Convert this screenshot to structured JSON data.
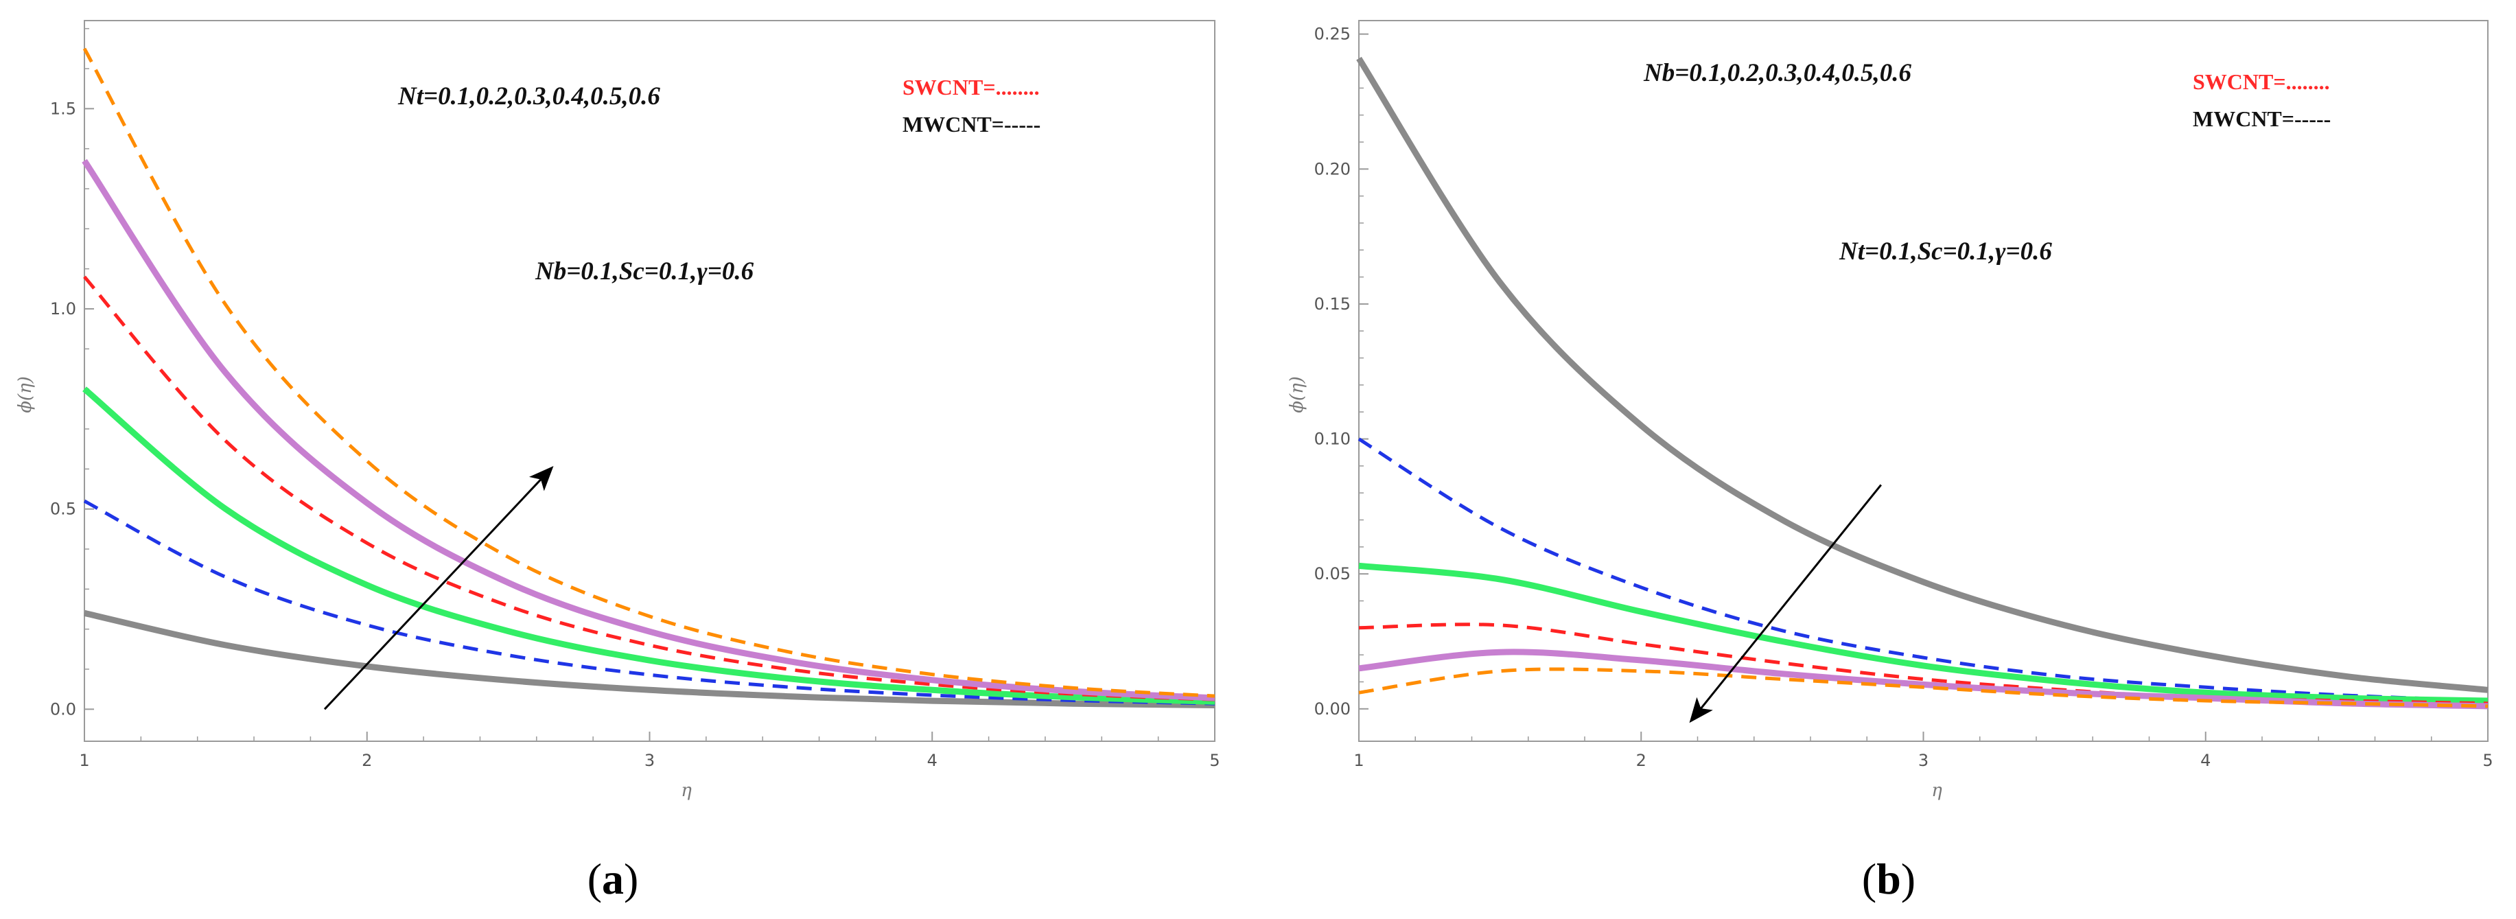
{
  "colors": {
    "gray": "#8a8a8a",
    "blue": "#1f35e6",
    "green": "#33ee66",
    "red": "#ff2222",
    "magenta": "#c77fd0",
    "orange": "#ff8c00",
    "frame": "#9a9a9a",
    "arrow": "#000000"
  },
  "chart_data": [
    {
      "panel_label": "a",
      "type": "line",
      "xlabel": "η",
      "ylabel": "ϕ(η)",
      "xlim": [
        1,
        5
      ],
      "ylim": [
        -0.08,
        1.72
      ],
      "xticks": [
        1,
        2,
        3,
        4,
        5
      ],
      "xtick_labels": [
        "1",
        "2",
        "3",
        "4",
        "5"
      ],
      "yticks": [
        0.0,
        0.5,
        1.0,
        1.5
      ],
      "ytick_labels": [
        "0.0",
        "0.5",
        "1.0",
        "1.5"
      ],
      "annotation_param": "Nt=0.1,0.2,0.3,0.4,0.5,0.6",
      "annotation_fixed": "Nb=0.1,Sc=0.1,γ=0.6",
      "legend": {
        "swcnt": "SWCNT=........",
        "mwcnt": "MWCNT=-----"
      },
      "arrow": {
        "from": [
          1.85,
          0.0
        ],
        "to": [
          2.65,
          0.6
        ],
        "direction": "increasing Nt"
      },
      "x": [
        1,
        1.5,
        2,
        2.5,
        3,
        3.5,
        4,
        4.5,
        5
      ],
      "series": [
        {
          "name": "Nt=0.1",
          "color_key": "gray",
          "style": "solid",
          "width": 9,
          "values": [
            0.24,
            0.16,
            0.107,
            0.072,
            0.048,
            0.032,
            0.021,
            0.014,
            0.01
          ]
        },
        {
          "name": "Nt=0.2",
          "color_key": "blue",
          "style": "dash",
          "width": 5,
          "values": [
            0.52,
            0.33,
            0.21,
            0.135,
            0.086,
            0.055,
            0.035,
            0.022,
            0.014
          ]
        },
        {
          "name": "Nt=0.3",
          "color_key": "green",
          "style": "solid",
          "width": 9,
          "values": [
            0.8,
            0.5,
            0.31,
            0.195,
            0.122,
            0.076,
            0.048,
            0.03,
            0.019
          ]
        },
        {
          "name": "Nt=0.4",
          "color_key": "red",
          "style": "dash",
          "width": 5,
          "values": [
            1.08,
            0.67,
            0.415,
            0.258,
            0.16,
            0.099,
            0.062,
            0.038,
            0.024
          ]
        },
        {
          "name": "Nt=0.5",
          "color_key": "magenta",
          "style": "solid",
          "width": 9,
          "values": [
            1.37,
            0.84,
            0.515,
            0.316,
            0.194,
            0.119,
            0.073,
            0.045,
            0.028
          ]
        },
        {
          "name": "Nt=0.6",
          "color_key": "orange",
          "style": "dash",
          "width": 5,
          "values": [
            1.65,
            1.01,
            0.62,
            0.38,
            0.232,
            0.142,
            0.087,
            0.053,
            0.033
          ]
        }
      ]
    },
    {
      "panel_label": "b",
      "type": "line",
      "xlabel": "η",
      "ylabel": "ϕ(η)",
      "xlim": [
        1,
        5
      ],
      "ylim": [
        -0.012,
        0.255
      ],
      "xticks": [
        1,
        2,
        3,
        4,
        5
      ],
      "xtick_labels": [
        "1",
        "2",
        "3",
        "4",
        "5"
      ],
      "yticks": [
        0.0,
        0.05,
        0.1,
        0.15,
        0.2,
        0.25
      ],
      "ytick_labels": [
        "0.00",
        "0.05",
        "0.10",
        "0.15",
        "0.20",
        "0.25"
      ],
      "annotation_param": "Nb=0.1,0.2,0.3,0.4,0.5,0.6",
      "annotation_fixed": "Nt=0.1,Sc=0.1,γ=0.6",
      "legend": {
        "swcnt": "SWCNT=........",
        "mwcnt": "MWCNT=-----"
      },
      "arrow": {
        "from": [
          2.85,
          0.083
        ],
        "to": [
          2.18,
          -0.004
        ],
        "direction": "increasing Nb"
      },
      "x": [
        1,
        1.5,
        2,
        2.5,
        3,
        3.5,
        4,
        4.5,
        5
      ],
      "series": [
        {
          "name": "Nb=0.1",
          "color_key": "gray",
          "style": "solid",
          "width": 9,
          "values": [
            0.241,
            0.158,
            0.105,
            0.07,
            0.047,
            0.031,
            0.02,
            0.012,
            0.007
          ]
        },
        {
          "name": "Nb=0.2",
          "color_key": "blue",
          "style": "dash",
          "width": 5,
          "values": [
            0.1,
            0.067,
            0.045,
            0.029,
            0.019,
            0.012,
            0.008,
            0.005,
            0.003
          ]
        },
        {
          "name": "Nb=0.3",
          "color_key": "green",
          "style": "solid",
          "width": 9,
          "values": [
            0.053,
            0.048,
            0.036,
            0.025,
            0.016,
            0.01,
            0.006,
            0.004,
            0.003
          ]
        },
        {
          "name": "Nb=0.4",
          "color_key": "red",
          "style": "dash",
          "width": 5,
          "values": [
            0.03,
            0.031,
            0.024,
            0.017,
            0.011,
            0.007,
            0.004,
            0.003,
            0.002
          ]
        },
        {
          "name": "Nb=0.5",
          "color_key": "magenta",
          "style": "solid",
          "width": 9,
          "values": [
            0.015,
            0.021,
            0.018,
            0.013,
            0.009,
            0.006,
            0.004,
            0.002,
            0.001
          ]
        },
        {
          "name": "Nb=0.6",
          "color_key": "orange",
          "style": "dash",
          "width": 5,
          "values": [
            0.006,
            0.014,
            0.014,
            0.011,
            0.008,
            0.005,
            0.003,
            0.002,
            0.001
          ]
        }
      ]
    }
  ]
}
